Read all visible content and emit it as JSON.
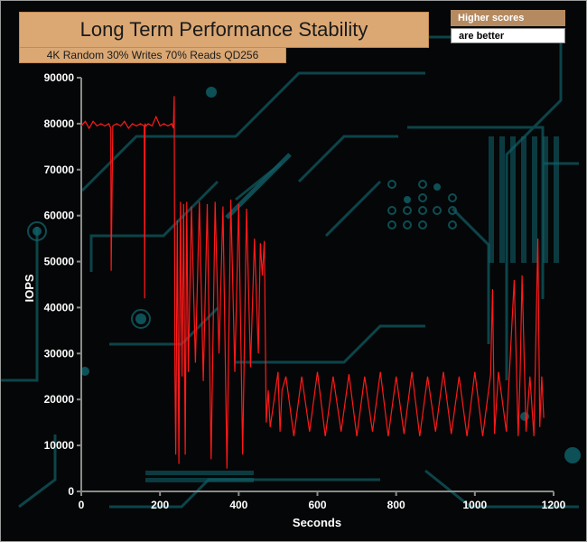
{
  "header": {
    "title": "Long Term Performance Stability",
    "subtitle": "4K Random 30% Writes 70% Reads QD256",
    "badge_top": "Higher scores",
    "badge_bottom": "are better"
  },
  "colors": {
    "series": "#ff1a1a",
    "axis": "#8a8a8a",
    "title_bg": "#dba874",
    "circuit": "#0f5f66"
  },
  "chart_data": {
    "type": "line",
    "title": "Long Term Performance Stability",
    "subtitle": "4K Random 30% Writes 70% Reads QD256",
    "xlabel": "Seconds",
    "ylabel": "IOPS",
    "xlim": [
      0,
      1200
    ],
    "ylim": [
      0,
      90000
    ],
    "x_ticks": [
      0,
      200,
      400,
      600,
      800,
      1000,
      1200
    ],
    "y_ticks": [
      0,
      10000,
      20000,
      30000,
      40000,
      50000,
      60000,
      70000,
      80000,
      90000
    ],
    "grid": false,
    "legend": "none",
    "series": [
      {
        "x": [
          0,
          10,
          20,
          30,
          40,
          50,
          60,
          70,
          75,
          76,
          80,
          90,
          100,
          110,
          120,
          130,
          140,
          150,
          160,
          161,
          162,
          165,
          170,
          180,
          190,
          200,
          210,
          220,
          230,
          234,
          236,
          238,
          240,
          244,
          248,
          252,
          256,
          260,
          264,
          268,
          272,
          280,
          290,
          300,
          310,
          320,
          330,
          340,
          350,
          360,
          370,
          380,
          390,
          400,
          410,
          420,
          430,
          440,
          450,
          455,
          460,
          465,
          470,
          475,
          480,
          490,
          500,
          505,
          510,
          520,
          540,
          560,
          580,
          600,
          620,
          640,
          660,
          680,
          700,
          720,
          740,
          760,
          780,
          800,
          820,
          840,
          860,
          880,
          900,
          920,
          940,
          960,
          980,
          1000,
          1020,
          1040,
          1045,
          1050,
          1060,
          1080,
          1100,
          1110,
          1115,
          1120,
          1130,
          1140,
          1150,
          1160,
          1165,
          1170,
          1175
        ],
        "values": [
          79500,
          80500,
          79000,
          80500,
          79500,
          80000,
          79500,
          80000,
          79000,
          48000,
          79500,
          80000,
          79500,
          80500,
          79000,
          80000,
          79500,
          80000,
          79500,
          42000,
          80000,
          79500,
          80000,
          79500,
          81500,
          79500,
          80000,
          79500,
          80000,
          79000,
          86000,
          26000,
          8000,
          59000,
          6000,
          63000,
          25000,
          62500,
          8000,
          63000,
          26000,
          62000,
          28000,
          63000,
          24000,
          62500,
          7000,
          63000,
          30000,
          62000,
          5000,
          63500,
          26000,
          62500,
          8000,
          61500,
          27000,
          55000,
          30000,
          54000,
          47000,
          54500,
          15000,
          22000,
          14000,
          20000,
          26000,
          13000,
          22000,
          25000,
          12000,
          25000,
          13000,
          26000,
          12000,
          25000,
          13000,
          25500,
          12000,
          25000,
          13000,
          26000,
          12000,
          25000,
          12500,
          26000,
          12000,
          25000,
          13000,
          26000,
          12500,
          25000,
          12000,
          26000,
          12000,
          25500,
          44000,
          12500,
          26000,
          13000,
          46000,
          12000,
          26000,
          47000,
          13000,
          25000,
          12000,
          55000,
          14000,
          25000,
          16000
        ]
      }
    ]
  }
}
